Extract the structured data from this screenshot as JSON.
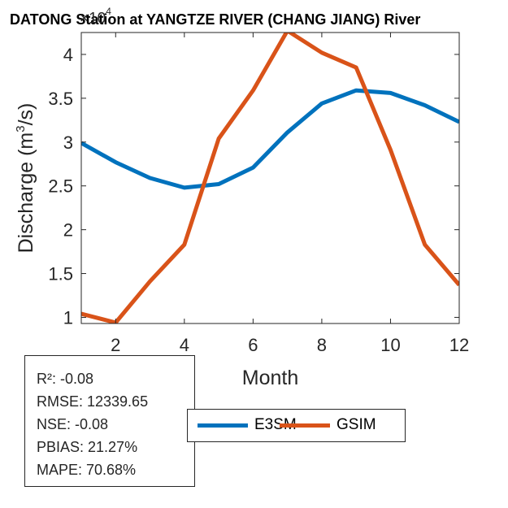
{
  "chart_data": {
    "type": "line",
    "title": "DATONG Station at  YANGTZE RIVER (CHANG JIANG)  River",
    "xlabel": "Month",
    "ylabel": "Discharge (m3/s)",
    "ylabel_parts": {
      "pre": "Discharge (m",
      "sup": "3",
      "post": "/s)"
    },
    "y_exponent": {
      "base": "×10",
      "power": "4"
    },
    "x": [
      1,
      2,
      3,
      4,
      5,
      6,
      7,
      8,
      9,
      10,
      11,
      12
    ],
    "xlim": [
      1,
      12
    ],
    "ylim": [
      0.93,
      4.25
    ],
    "xticks": [
      2,
      4,
      6,
      8,
      10,
      12
    ],
    "yticks": [
      1,
      1.5,
      2,
      2.5,
      3,
      3.5,
      4
    ],
    "ytick_labels": [
      "1",
      "1.5",
      "2",
      "2.5",
      "3",
      "3.5",
      "4"
    ],
    "grid": false,
    "legend_placement": "bottom",
    "series": [
      {
        "name": "E3SM",
        "color": "#0072BD",
        "values": [
          2.99,
          2.77,
          2.59,
          2.48,
          2.52,
          2.71,
          3.11,
          3.44,
          3.59,
          3.56,
          3.42,
          3.23
        ]
      },
      {
        "name": "GSIM",
        "color": "#D95319",
        "values": [
          1.04,
          0.94,
          1.41,
          1.83,
          3.04,
          3.59,
          4.27,
          4.02,
          3.85,
          2.91,
          1.83,
          1.37
        ]
      }
    ]
  },
  "stats": {
    "r2": "R²: -0.08",
    "rmse": "RMSE: 12339.65",
    "nse": "NSE: -0.08",
    "pbias": "PBIAS: 21.27%",
    "mape": "MAPE: 70.68%"
  }
}
